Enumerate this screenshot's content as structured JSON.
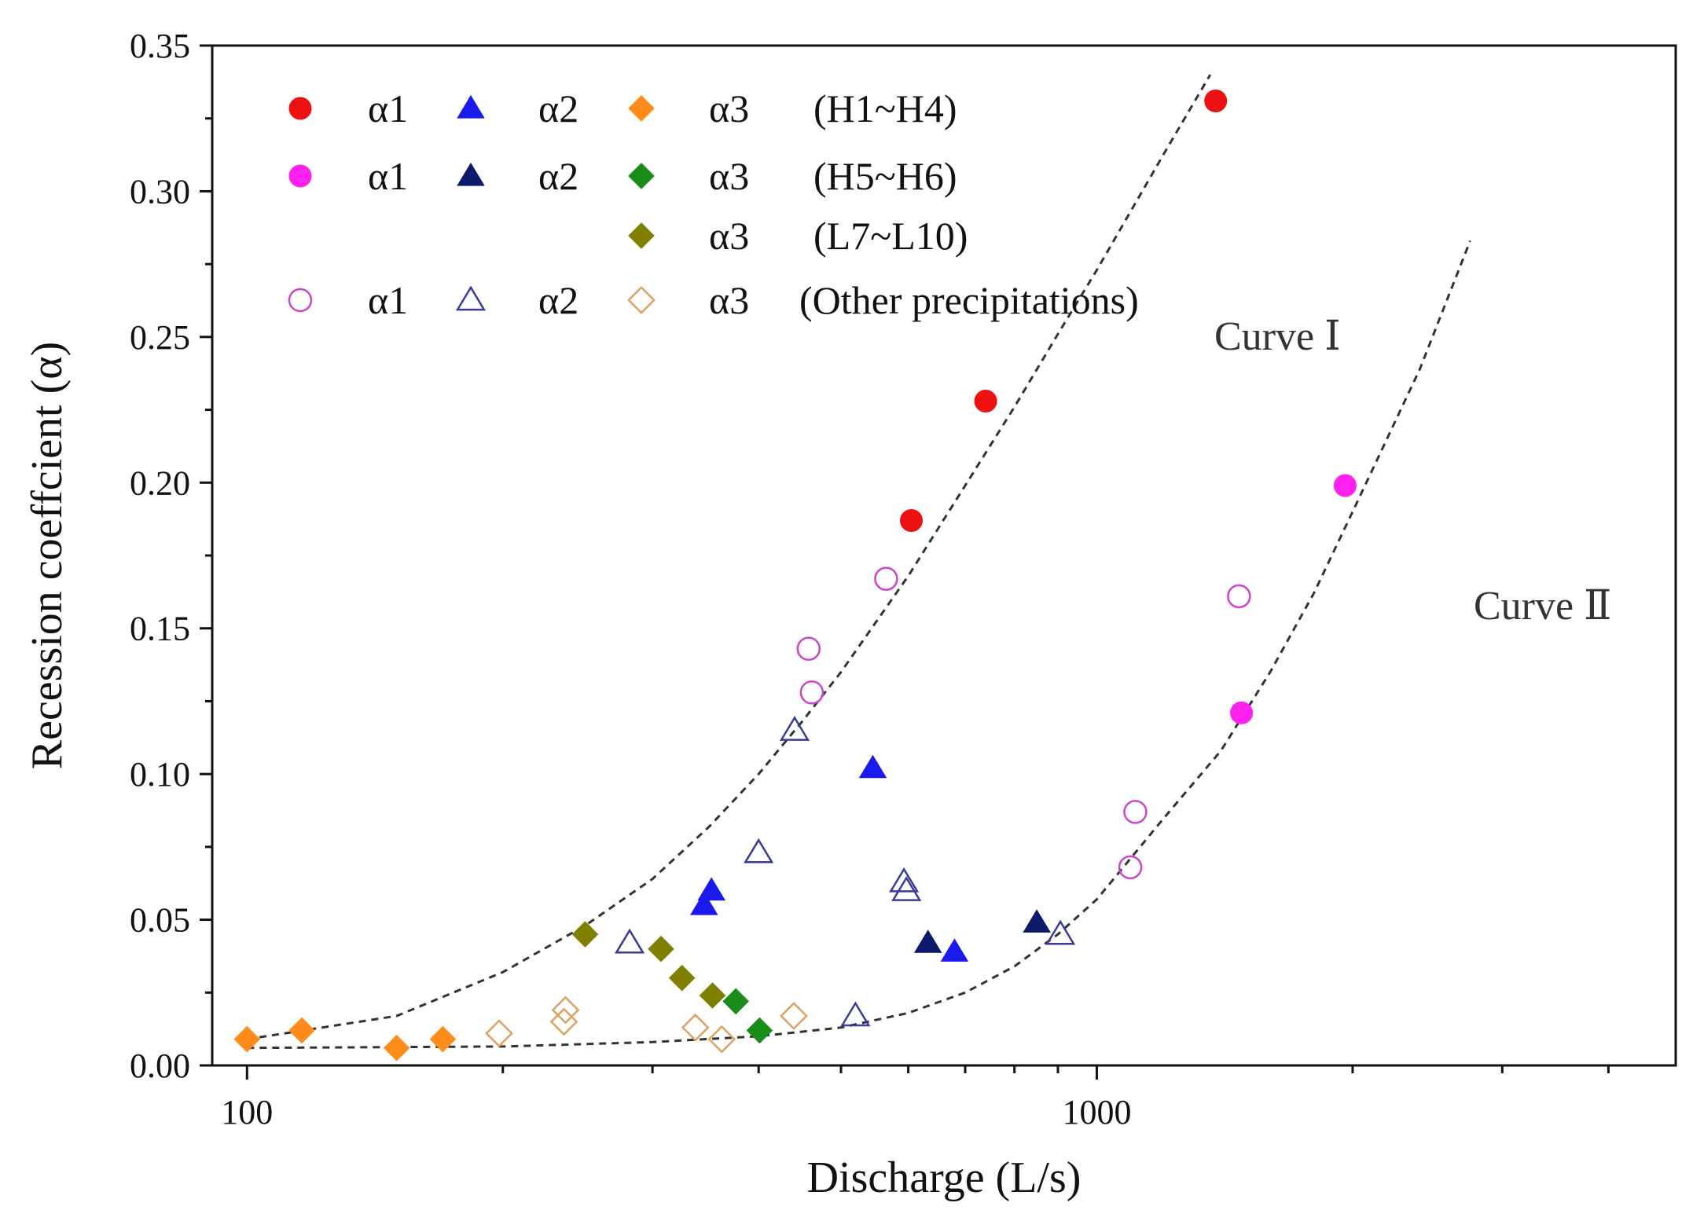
{
  "chart_data": {
    "type": "scatter",
    "title": "",
    "xlabel": "Discharge (L/s)",
    "ylabel": "Recession coeffcient (α)",
    "xscale": "log",
    "xlim": [
      91,
      4800
    ],
    "ylim": [
      0,
      0.35
    ],
    "xticks": [
      100,
      1000
    ],
    "xtick_labels": [
      "100",
      "1000"
    ],
    "yticks": [
      0,
      0.05,
      0.1,
      0.15,
      0.2,
      0.25,
      0.3,
      0.35
    ],
    "ytick_labels": [
      "0.00",
      "0.05",
      "0.10",
      "0.15",
      "0.20",
      "0.25",
      "0.30",
      "0.35"
    ],
    "legend": {
      "placement": "top-left",
      "rows": [
        {
          "label": "(H1~H4)",
          "entries": [
            {
              "series": "a1-h1h4",
              "text": "α1"
            },
            {
              "series": "a2-h1h4",
              "text": "α2"
            },
            {
              "series": "a3-h1h4",
              "text": "α3"
            }
          ]
        },
        {
          "label": "(H5~H6)",
          "entries": [
            {
              "series": "a1-h5h6",
              "text": "α1"
            },
            {
              "series": "a2-h5h6",
              "text": "α2"
            },
            {
              "series": "a3-h5h6",
              "text": "α3"
            }
          ]
        },
        {
          "label": "(L7~L10)",
          "entries": [
            {
              "series": "a3-l7l10",
              "text": "α3"
            }
          ]
        },
        {
          "label": "(Other precipitations)",
          "entries": [
            {
              "series": "a1-other",
              "text": "α1"
            },
            {
              "series": "a2-other",
              "text": "α2"
            },
            {
              "series": "a3-other",
              "text": "α3"
            }
          ]
        }
      ]
    },
    "series": [
      {
        "id": "a1-h1h4",
        "name": "α1 (H1~H4)",
        "marker": "circle",
        "filled": true,
        "color": "#ee1111",
        "points": [
          [
            1380,
            0.331
          ],
          [
            740,
            0.228
          ],
          [
            605,
            0.187
          ]
        ]
      },
      {
        "id": "a2-h1h4",
        "name": "α2 (H1~H4)",
        "marker": "triangle",
        "filled": true,
        "color": "#1a1aee",
        "points": [
          [
            545,
            0.102
          ],
          [
            352,
            0.06
          ],
          [
            345,
            0.055
          ],
          [
            680,
            0.039
          ]
        ]
      },
      {
        "id": "a3-h1h4",
        "name": "α3 (H1~H4)",
        "marker": "diamond",
        "filled": true,
        "color": "#ff8c1a",
        "points": [
          [
            100,
            0.009
          ],
          [
            116,
            0.012
          ],
          [
            150,
            0.006
          ],
          [
            170,
            0.009
          ]
        ]
      },
      {
        "id": "a1-h5h6",
        "name": "α1 (H5~H6)",
        "marker": "circle",
        "filled": true,
        "color": "#ff22ee",
        "points": [
          [
            1960,
            0.199
          ],
          [
            1480,
            0.121
          ]
        ]
      },
      {
        "id": "a2-h5h6",
        "name": "α2 (H5~H6)",
        "marker": "triangle",
        "filled": true,
        "color": "#0c1a6e",
        "points": [
          [
            633,
            0.042
          ],
          [
            850,
            0.049
          ]
        ]
      },
      {
        "id": "a3-h5h6",
        "name": "α3 (H5~H6)",
        "marker": "diamond",
        "filled": true,
        "color": "#1a8c1a",
        "points": [
          [
            376,
            0.022
          ],
          [
            401,
            0.012
          ]
        ]
      },
      {
        "id": "a3-l7l10",
        "name": "α3 (L7~L10)",
        "marker": "diamond",
        "filled": true,
        "color": "#808000",
        "points": [
          [
            250,
            0.045
          ],
          [
            307,
            0.04
          ],
          [
            325,
            0.03
          ],
          [
            353,
            0.024
          ]
        ]
      },
      {
        "id": "a1-other",
        "name": "α1 (Other precipitations)",
        "marker": "circle",
        "filled": false,
        "color": "#cc44cc",
        "points": [
          [
            565,
            0.167
          ],
          [
            458,
            0.143
          ],
          [
            462,
            0.128
          ],
          [
            1470,
            0.161
          ],
          [
            1110,
            0.087
          ],
          [
            1095,
            0.068
          ]
        ]
      },
      {
        "id": "a2-other",
        "name": "α2 (Other precipitations)",
        "marker": "triangle",
        "filled": false,
        "color": "#3a3a9a",
        "points": [
          [
            441,
            0.115
          ],
          [
            400,
            0.073
          ],
          [
            282,
            0.042
          ],
          [
            593,
            0.063
          ],
          [
            597,
            0.06
          ],
          [
            906,
            0.045
          ],
          [
            520,
            0.017
          ]
        ]
      },
      {
        "id": "a3-other",
        "name": "α3 (Other precipitations)",
        "marker": "diamond",
        "filled": false,
        "color": "#e0a060",
        "points": [
          [
            198,
            0.011
          ],
          [
            237,
            0.019
          ],
          [
            236,
            0.015
          ],
          [
            337,
            0.013
          ],
          [
            362,
            0.009
          ],
          [
            440,
            0.017
          ]
        ]
      }
    ],
    "curves": [
      {
        "id": "curve-1",
        "label": "Curve Ⅰ",
        "color": "#333333",
        "points": [
          [
            100,
            0.009
          ],
          [
            150,
            0.017
          ],
          [
            200,
            0.032
          ],
          [
            250,
            0.048
          ],
          [
            300,
            0.064
          ],
          [
            350,
            0.082
          ],
          [
            400,
            0.1
          ],
          [
            450,
            0.118
          ],
          [
            500,
            0.135
          ],
          [
            600,
            0.168
          ],
          [
            700,
            0.199
          ],
          [
            800,
            0.226
          ],
          [
            900,
            0.251
          ],
          [
            1000,
            0.273
          ],
          [
            1200,
            0.313
          ],
          [
            1360,
            0.34
          ]
        ]
      },
      {
        "id": "curve-2",
        "label": "Curve Ⅱ",
        "color": "#333333",
        "points": [
          [
            100,
            0.006
          ],
          [
            200,
            0.0065
          ],
          [
            300,
            0.008
          ],
          [
            400,
            0.01
          ],
          [
            500,
            0.013
          ],
          [
            600,
            0.018
          ],
          [
            700,
            0.025
          ],
          [
            800,
            0.034
          ],
          [
            900,
            0.045
          ],
          [
            1000,
            0.057
          ],
          [
            1200,
            0.085
          ],
          [
            1400,
            0.108
          ],
          [
            1600,
            0.135
          ],
          [
            1800,
            0.162
          ],
          [
            2000,
            0.19
          ],
          [
            2400,
            0.239
          ],
          [
            2750,
            0.283
          ]
        ]
      }
    ]
  }
}
